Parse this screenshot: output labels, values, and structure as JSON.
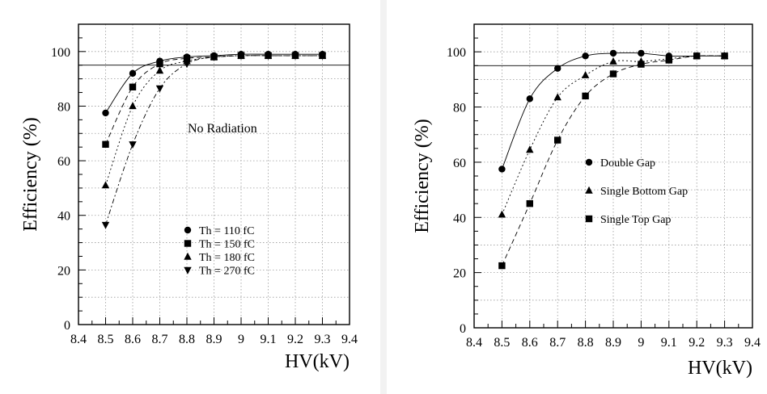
{
  "chart_data": [
    {
      "type": "line",
      "xlabel": "HV(kV)",
      "ylabel": "Efficiency (%)",
      "xlim": [
        8.4,
        9.4
      ],
      "ylim": [
        0,
        110
      ],
      "xticks": [
        "8.4",
        "8.5",
        "8.6",
        "8.7",
        "8.8",
        "8.9",
        "9",
        "9.1",
        "9.2",
        "9.3",
        "9.4"
      ],
      "yticks": [
        "0",
        "20",
        "40",
        "60",
        "80",
        "100"
      ],
      "reference_line": 95,
      "grid": true,
      "annotation": "No Radiation",
      "legend_position": "bottom-center",
      "series": [
        {
          "name": "Th = 110 fC",
          "marker": "circle",
          "line": "solid",
          "x": [
            8.5,
            8.6,
            8.7,
            8.8,
            8.9,
            9.0,
            9.1,
            9.2,
            9.3
          ],
          "y": [
            77.5,
            92,
            96.5,
            98,
            98.5,
            99,
            99,
            99,
            99
          ]
        },
        {
          "name": "Th = 150 fC",
          "marker": "square",
          "line": "dashed",
          "x": [
            8.5,
            8.6,
            8.7,
            8.8,
            8.9,
            9.0,
            9.1,
            9.2,
            9.3
          ],
          "y": [
            66,
            87,
            95.5,
            97.5,
            98,
            98.5,
            98.5,
            98.5,
            98.5
          ]
        },
        {
          "name": "Th = 180 fC",
          "marker": "triangle-up",
          "line": "dotted",
          "x": [
            8.5,
            8.6,
            8.7,
            8.8,
            8.9,
            9.0,
            9.1,
            9.2,
            9.3
          ],
          "y": [
            51,
            80,
            93,
            96.5,
            98,
            98.5,
            98.5,
            98.5,
            98.5
          ]
        },
        {
          "name": "Th = 270 fC",
          "marker": "triangle-down",
          "line": "dashdot",
          "x": [
            8.5,
            8.6,
            8.7,
            8.8,
            8.9,
            9.0,
            9.1,
            9.2,
            9.3
          ],
          "y": [
            36.5,
            66,
            86.5,
            95.5,
            98,
            98.5,
            98.5,
            98.5,
            98.5
          ]
        }
      ]
    },
    {
      "type": "line",
      "xlabel": "HV(kV)",
      "ylabel": "Efficiency (%)",
      "xlim": [
        8.4,
        9.4
      ],
      "ylim": [
        0,
        110
      ],
      "xticks": [
        "8.4",
        "8.5",
        "8.6",
        "8.7",
        "8.8",
        "8.9",
        "9",
        "9.1",
        "9.2",
        "9.3",
        "9.4"
      ],
      "yticks": [
        "0",
        "20",
        "40",
        "60",
        "80",
        "100"
      ],
      "reference_line": 95,
      "grid": true,
      "legend_position": "center",
      "series": [
        {
          "name": "Double Gap",
          "marker": "circle",
          "line": "solid",
          "x": [
            8.5,
            8.6,
            8.7,
            8.8,
            8.9,
            9.0,
            9.1,
            9.2,
            9.3
          ],
          "y": [
            57.5,
            83,
            94,
            98.5,
            99.5,
            99.5,
            98.5,
            98.5,
            98.5
          ]
        },
        {
          "name": "Single Bottom Gap",
          "marker": "triangle-up",
          "line": "dotted",
          "x": [
            8.5,
            8.6,
            8.7,
            8.8,
            8.9,
            9.0,
            9.1,
            9.2,
            9.3
          ],
          "y": [
            41,
            64.5,
            83.5,
            91.5,
            96.5,
            96.5,
            97.5,
            98.5,
            98.5
          ]
        },
        {
          "name": "Single Top Gap",
          "marker": "square",
          "line": "dashed",
          "x": [
            8.5,
            8.6,
            8.7,
            8.8,
            8.9,
            9.0,
            9.1,
            9.2,
            9.3
          ],
          "y": [
            22.5,
            45,
            68,
            84,
            92,
            95.5,
            97,
            98.5,
            98.5
          ]
        }
      ]
    }
  ]
}
